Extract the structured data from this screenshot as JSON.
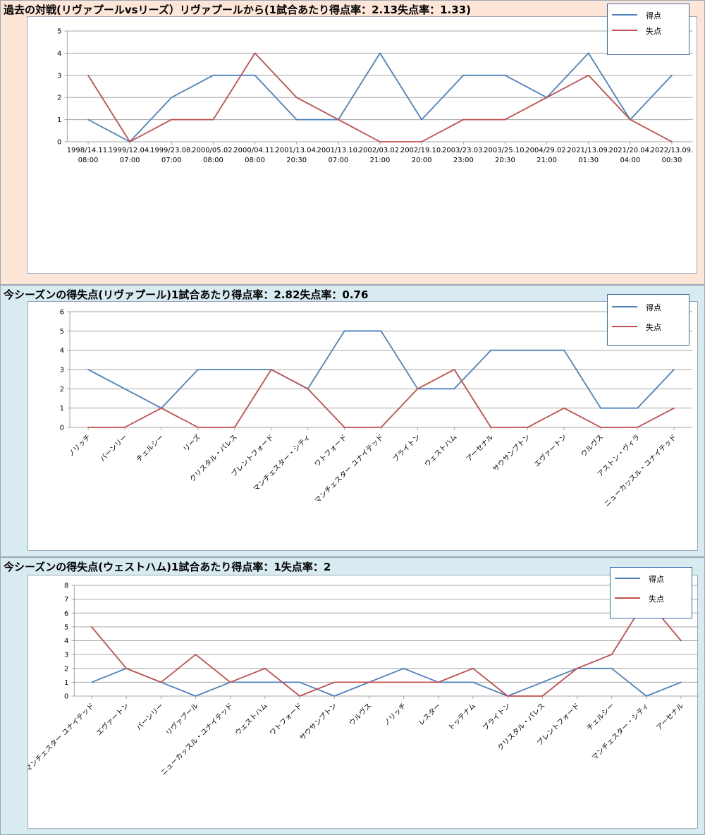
{
  "colors": {
    "score": "#4f81bd",
    "concede": "#c0504d",
    "grid": "#a6a6a6"
  },
  "legend": {
    "score_label": "得点",
    "concede_label": "失点"
  },
  "chart_data": [
    {
      "type": "line",
      "title": "過去の対戦(リヴァプールvsリーズ）リヴァプールから(1試合あたり得点率：2.13失点率：1.33)",
      "categories": [
        [
          "1998/14.11.",
          "08:00"
        ],
        [
          "1999/12.04.",
          "07:00"
        ],
        [
          "1999/23.08.",
          "07:00"
        ],
        [
          "2000/05.02.",
          "08:00"
        ],
        [
          "2000/04.11.",
          "08:00"
        ],
        [
          "2001/13.04.",
          "20:30"
        ],
        [
          "2001/13.10.",
          "07:00"
        ],
        [
          "2002/03.02.",
          "21:00"
        ],
        [
          "2002/19.10.",
          "20:00"
        ],
        [
          "2003/23.03.",
          "23:00"
        ],
        [
          "2003/25.10.",
          "20:30"
        ],
        [
          "2004/29.02.",
          "21:00"
        ],
        [
          "2021/13.09.",
          "01:30"
        ],
        [
          "2021/20.04.",
          "04:00"
        ],
        [
          "2022/13.09.",
          "00:30"
        ]
      ],
      "series": [
        {
          "name": "得点",
          "values": [
            1,
            0,
            2,
            3,
            3,
            1,
            1,
            4,
            1,
            3,
            3,
            2,
            4,
            1,
            3
          ]
        },
        {
          "name": "失点",
          "values": [
            3,
            0,
            1,
            1,
            4,
            2,
            1,
            0,
            0,
            1,
            1,
            2,
            3,
            1,
            0
          ]
        }
      ],
      "ylim": [
        0,
        5
      ],
      "yticks": [
        0,
        1,
        2,
        3,
        4,
        5
      ],
      "grid": true,
      "legend_position": "top-right",
      "rotated_labels": false
    },
    {
      "type": "line",
      "title": "今シーズンの得失点(リヴァプール)1試合あたり得点率：2.82失点率：0.76",
      "categories": [
        [
          "ノリッチ"
        ],
        [
          "バーンリー"
        ],
        [
          "チェルシー"
        ],
        [
          "リーズ"
        ],
        [
          "クリスタル・パレス"
        ],
        [
          "ブレントフォード"
        ],
        [
          "マンチェスター・シティ"
        ],
        [
          "ワトフォード"
        ],
        [
          "マンチェスター ユナイテッド"
        ],
        [
          "ブライトン"
        ],
        [
          "ウェストハム"
        ],
        [
          "アーセナル"
        ],
        [
          "サウサンプトン"
        ],
        [
          "エヴァートン"
        ],
        [
          "ウルヴス"
        ],
        [
          "アストン・ヴィラ"
        ],
        [
          "ニューカッスル・ユナイテッド"
        ]
      ],
      "series": [
        {
          "name": "得点",
          "values": [
            3,
            2,
            1,
            3,
            3,
            3,
            2,
            5,
            5,
            2,
            2,
            4,
            4,
            4,
            1,
            1,
            3
          ]
        },
        {
          "name": "失点",
          "values": [
            0,
            0,
            1,
            0,
            0,
            3,
            2,
            0,
            0,
            2,
            3,
            0,
            0,
            1,
            0,
            0,
            1
          ]
        }
      ],
      "ylim": [
        0,
        6
      ],
      "yticks": [
        0,
        1,
        2,
        3,
        4,
        5,
        6
      ],
      "grid": true,
      "legend_position": "top-right",
      "rotated_labels": true
    },
    {
      "type": "line",
      "title": "今シーズンの得失点(ウェストハム)1試合あたり得点率：1失点率：2",
      "categories": [
        [
          "マンチェスター ユナイテッド"
        ],
        [
          "エヴァートン"
        ],
        [
          "バーンリー"
        ],
        [
          "リヴァプール"
        ],
        [
          "ニューカッスル・ユナイテッド"
        ],
        [
          "ウェストハム"
        ],
        [
          "ワトフォード"
        ],
        [
          "サウサンプトン"
        ],
        [
          "ウルヴス"
        ],
        [
          "ノリッチ"
        ],
        [
          "レスター"
        ],
        [
          "トッテナム"
        ],
        [
          "ブライトン"
        ],
        [
          "クリスタル・パレス"
        ],
        [
          "ブレントフォード"
        ],
        [
          "チェルシー"
        ],
        [
          "マンチェスター・シティ"
        ],
        [
          "アーセナル"
        ]
      ],
      "series": [
        {
          "name": "得点",
          "values": [
            1,
            2,
            1,
            0,
            1,
            1,
            1,
            0,
            1,
            2,
            1,
            1,
            0,
            1,
            2,
            2,
            0,
            1
          ]
        },
        {
          "name": "失点",
          "values": [
            5,
            2,
            1,
            3,
            1,
            2,
            0,
            1,
            1,
            1,
            1,
            2,
            0,
            0,
            2,
            3,
            7,
            4
          ]
        }
      ],
      "ylim": [
        0,
        8
      ],
      "yticks": [
        0,
        1,
        2,
        3,
        4,
        5,
        6,
        7,
        8
      ],
      "grid": true,
      "legend_position": "top-right",
      "rotated_labels": true
    }
  ]
}
